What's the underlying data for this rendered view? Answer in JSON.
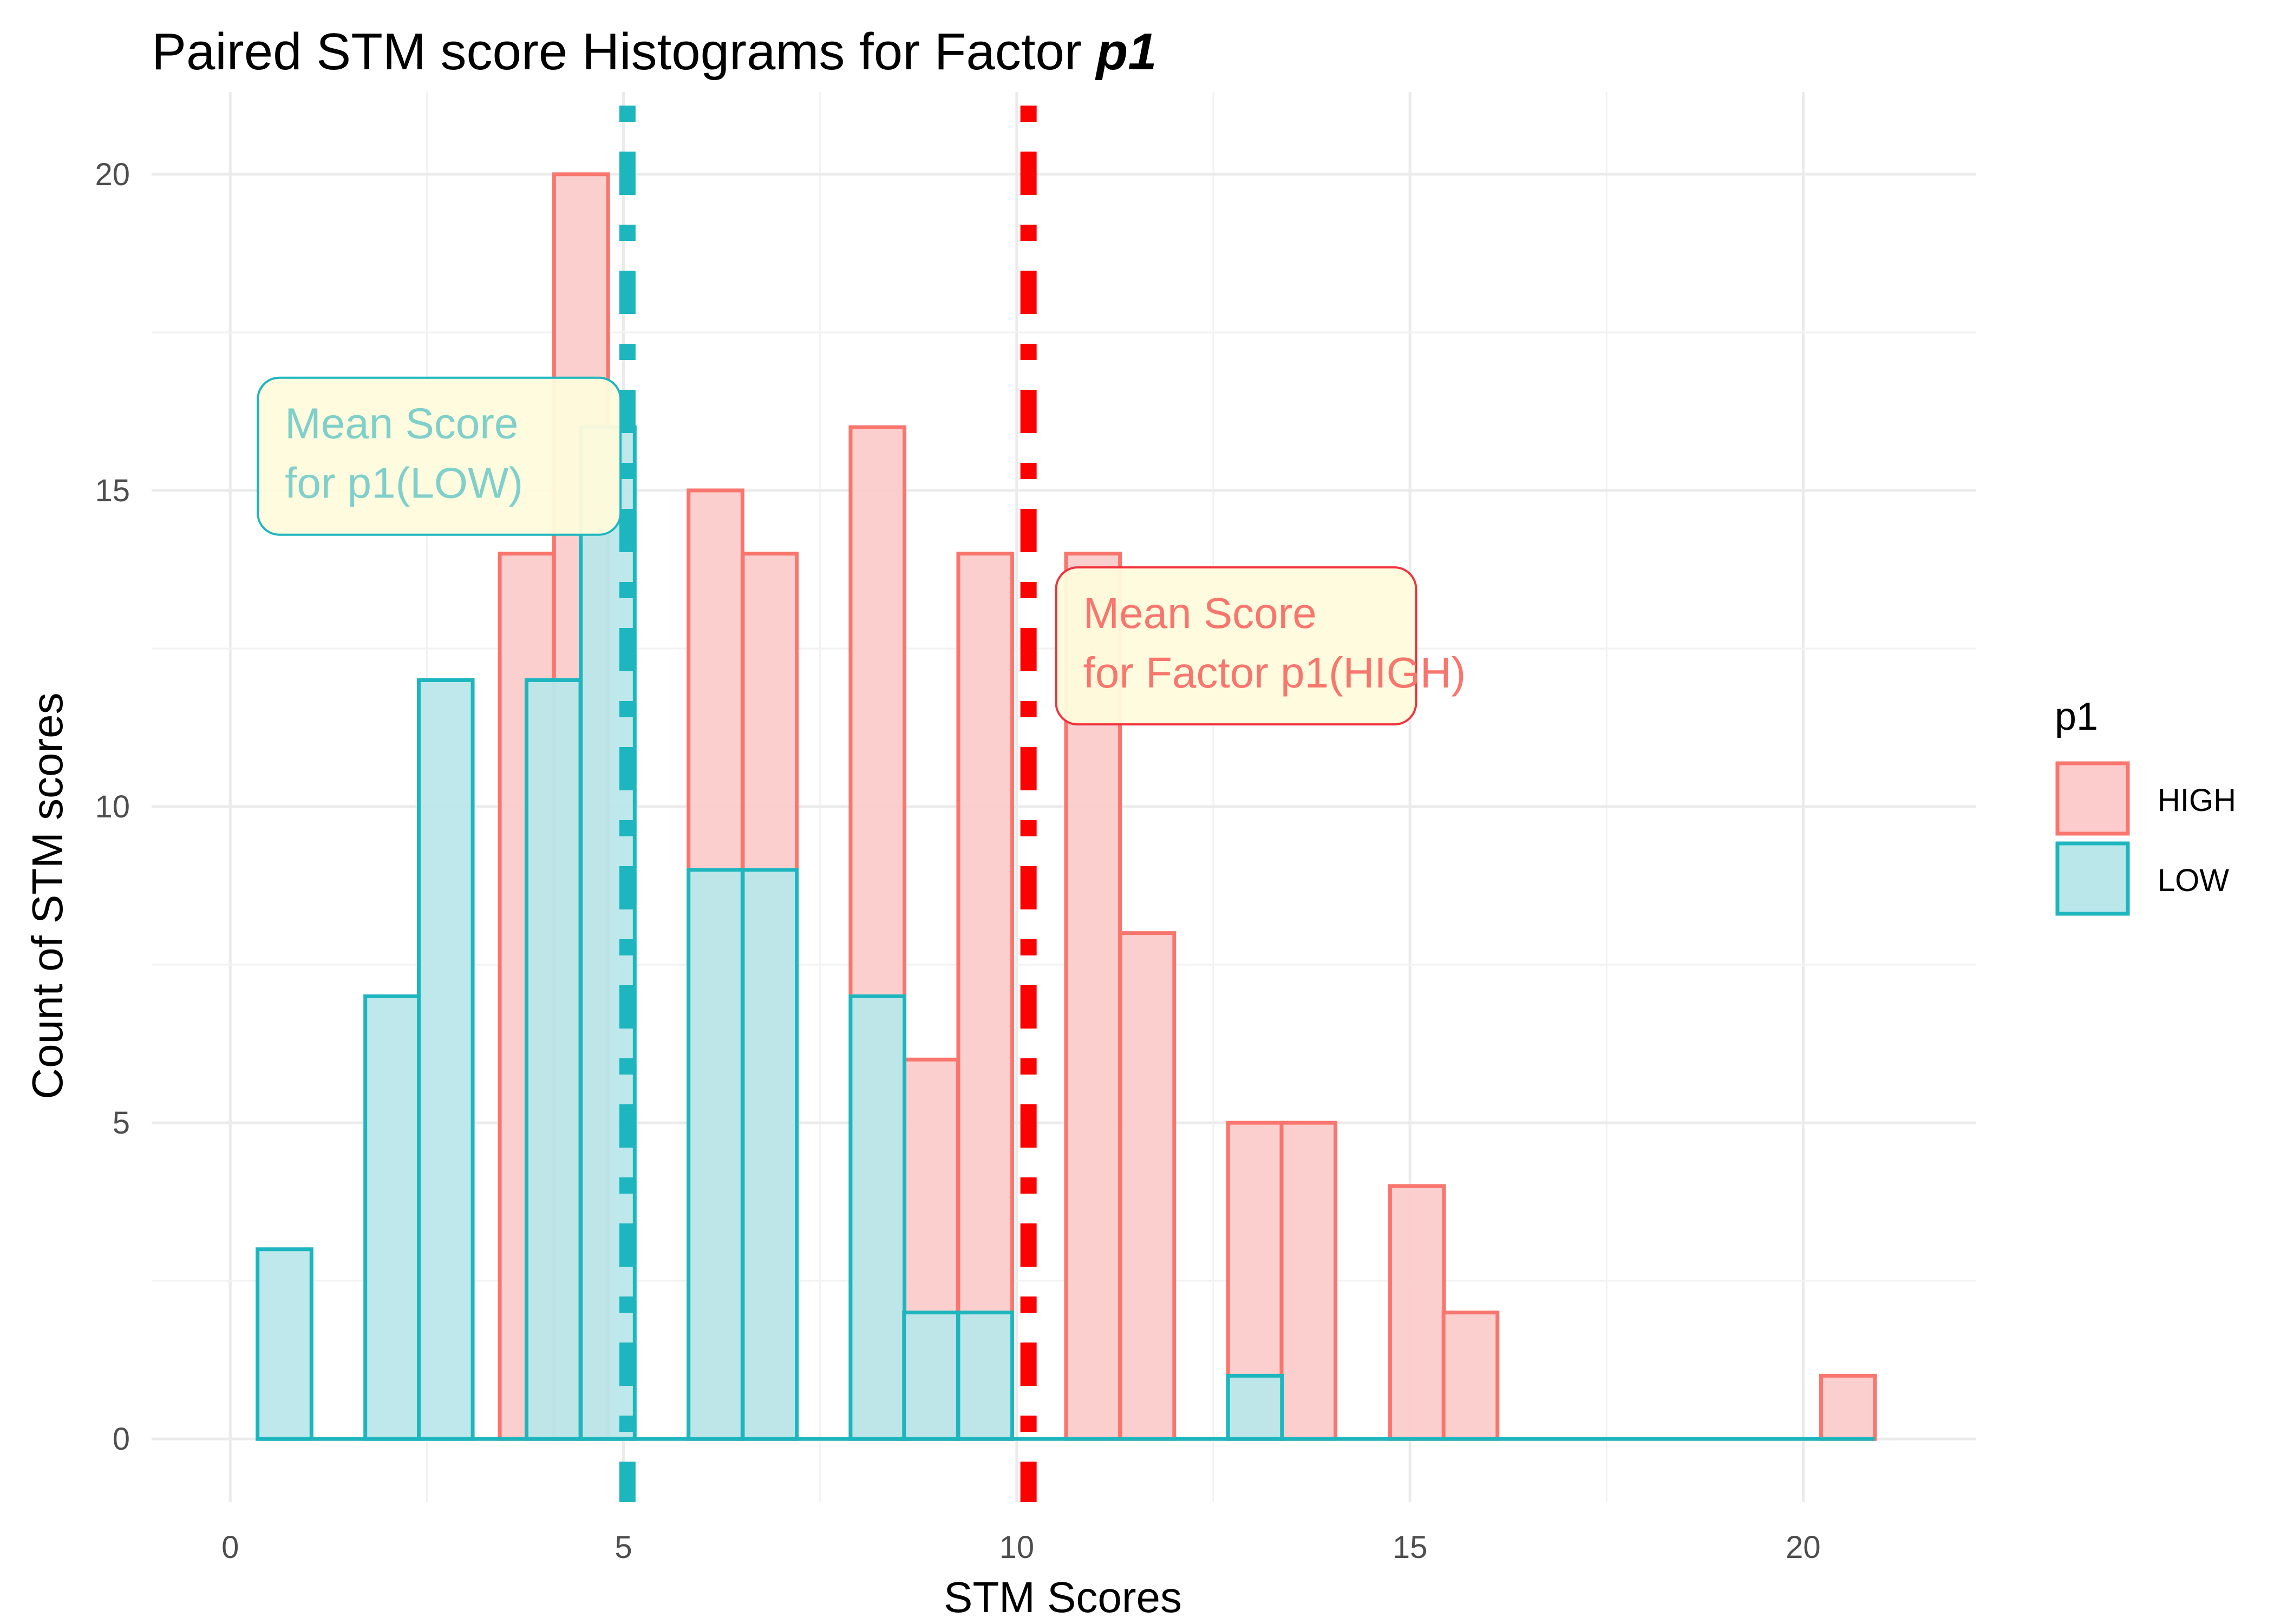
{
  "chart_data": {
    "type": "bar",
    "title": "Paired STM score Histograms for Factor",
    "title_factor": "p1",
    "xlabel": "STM Scores",
    "ylabel": "Count of STM scores",
    "xlim": [
      -1,
      22.2
    ],
    "ylim": [
      -1,
      21.3
    ],
    "x_ticks": [
      "0",
      "5",
      "10",
      "15",
      "20"
    ],
    "y_ticks": [
      "0",
      "5",
      "10",
      "15",
      "20"
    ],
    "x_tick_values": [
      0,
      5,
      10,
      15,
      20
    ],
    "y_tick_values": [
      0,
      5,
      10,
      15,
      20
    ],
    "grid": true,
    "bin_width": 0.6857,
    "series": [
      {
        "name": "HIGH",
        "color": "#F8766D",
        "fill": "#FCCCCC",
        "mean": 10.15,
        "bins": [
          {
            "x": 3.77,
            "count": 14
          },
          {
            "x": 4.46,
            "count": 20
          },
          {
            "x": 6.17,
            "count": 15
          },
          {
            "x": 6.86,
            "count": 14
          },
          {
            "x": 8.23,
            "count": 16
          },
          {
            "x": 8.91,
            "count": 6
          },
          {
            "x": 9.6,
            "count": 14
          },
          {
            "x": 10.97,
            "count": 14
          },
          {
            "x": 11.66,
            "count": 8
          },
          {
            "x": 13.03,
            "count": 5
          },
          {
            "x": 13.71,
            "count": 5
          },
          {
            "x": 15.09,
            "count": 4
          },
          {
            "x": 15.77,
            "count": 2
          },
          {
            "x": 20.57,
            "count": 1
          }
        ]
      },
      {
        "name": "LOW",
        "color": "#1EB6BE",
        "fill": "#BAE7EA",
        "mean": 5.05,
        "bins": [
          {
            "x": 0.69,
            "count": 3
          },
          {
            "x": 2.06,
            "count": 7
          },
          {
            "x": 2.74,
            "count": 12
          },
          {
            "x": 4.11,
            "count": 12
          },
          {
            "x": 4.8,
            "count": 16
          },
          {
            "x": 6.17,
            "count": 9
          },
          {
            "x": 6.86,
            "count": 9
          },
          {
            "x": 8.23,
            "count": 7
          },
          {
            "x": 8.91,
            "count": 2
          },
          {
            "x": 9.6,
            "count": 2
          },
          {
            "x": 13.03,
            "count": 1
          }
        ]
      }
    ],
    "legend": {
      "title": "p1",
      "position": "right"
    },
    "annotations": [
      {
        "series": "LOW",
        "line1": "Mean Score",
        "line2": "for p1(LOW)",
        "text_color": "#7FCFCB",
        "border": "#1EB6BE",
        "x": 0.35,
        "y": 14.3
      },
      {
        "series": "HIGH",
        "line1": "Mean Score",
        "line2": "for Factor p1(HIGH)",
        "text_color": "#F8766D",
        "border": "#F0323C",
        "x": 10.5,
        "y": 11.3
      }
    ]
  }
}
